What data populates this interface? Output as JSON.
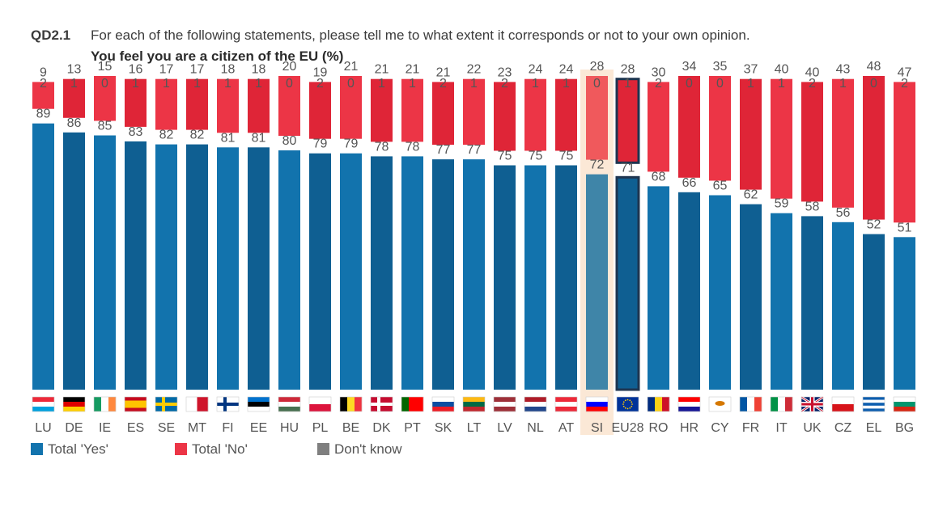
{
  "header": {
    "qcode": "QD2.1",
    "question": "For each of the following statements, please tell me to what extent it corresponds or not to your own opinion.",
    "subtitle": "You feel you are a citizen of the EU  (%)"
  },
  "legend": {
    "yes": "Total 'Yes'",
    "no": "Total 'No'",
    "dk": "Don't know"
  },
  "colors": {
    "yes": "#1273ad",
    "yes_alt": "#0f5f92",
    "no": "#ec3546",
    "no_alt": "#df2537",
    "dk": "#7f7f7f",
    "highlight_bg": "#fbe8d6",
    "highlight_yes": "#3f85a8",
    "highlight_no": "#f0595c",
    "eu_border": "#1e3550"
  },
  "chart_data": {
    "type": "bar",
    "stacked": true,
    "ylim": [
      0,
      100
    ],
    "highlight": "SI",
    "reference": "EU28",
    "categories": [
      "LU",
      "DE",
      "IE",
      "ES",
      "SE",
      "MT",
      "FI",
      "EE",
      "HU",
      "PL",
      "BE",
      "DK",
      "PT",
      "SK",
      "LT",
      "LV",
      "NL",
      "AT",
      "SI",
      "EU28",
      "RO",
      "HR",
      "CY",
      "FR",
      "IT",
      "UK",
      "CZ",
      "EL",
      "BG"
    ],
    "series": [
      {
        "name": "Total 'Yes'",
        "values": [
          89,
          86,
          85,
          83,
          82,
          82,
          81,
          81,
          80,
          79,
          79,
          78,
          78,
          77,
          77,
          75,
          75,
          75,
          72,
          71,
          68,
          66,
          65,
          62,
          59,
          58,
          56,
          52,
          51
        ]
      },
      {
        "name": "Total 'No'",
        "values": [
          9,
          13,
          15,
          16,
          17,
          17,
          18,
          18,
          20,
          19,
          21,
          21,
          21,
          21,
          22,
          23,
          24,
          24,
          28,
          28,
          30,
          34,
          35,
          37,
          40,
          40,
          43,
          48,
          47
        ]
      },
      {
        "name": "Don't know",
        "values": [
          2,
          1,
          0,
          1,
          1,
          1,
          1,
          1,
          0,
          2,
          0,
          1,
          1,
          2,
          1,
          2,
          1,
          1,
          0,
          1,
          2,
          0,
          0,
          1,
          1,
          2,
          1,
          0,
          2
        ]
      }
    ]
  }
}
